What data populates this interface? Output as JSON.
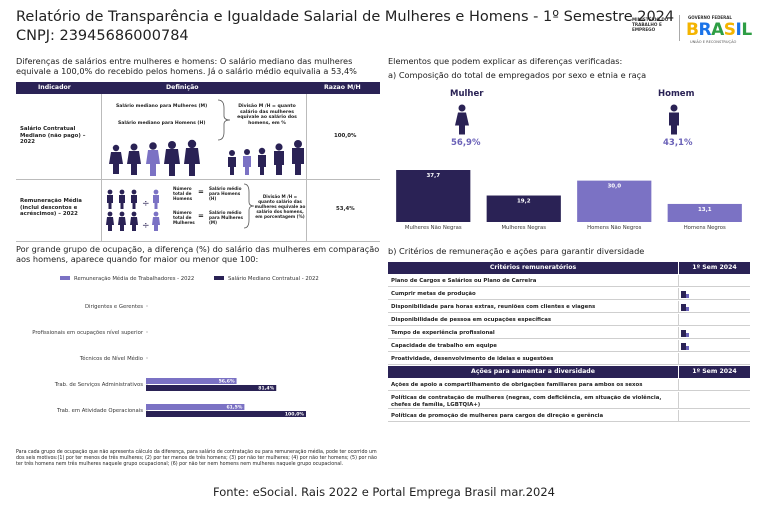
{
  "header": {
    "title": "Relatório de Transparência e Igualdade Salarial de Mulheres e Homens - 1º Semestre 2024",
    "cnpj": "CNPJ: 23945686000784",
    "gov_mini": "MINISTÉRIO DO TRABALHO E EMPREGO",
    "gov_federal": "GOVERNO FEDERAL",
    "gov_brasil": "BRASIL",
    "gov_uniao": "UNIÃO E RECONSTRUÇÃO"
  },
  "intro": "Diferenças de salários entre mulheres e homens: O salário mediano das mulheres equivale a 100,0% do recebido pelos homens. Já o salário médio equivalia a 53,4%",
  "indicator_table": {
    "headers": [
      "Indicador",
      "Definição",
      "Razao M/H"
    ],
    "row1": {
      "indicator": "Salário Contratual Mediano (não pago) – 2022",
      "label_m": "Salário mediano para Mulheres (M)",
      "label_h": "Salário mediano para Homens (H)",
      "explain": "Divisão M /H = quanto salário das mulheres equivale ao salário dos homens, em %",
      "ratio": "100,0%"
    },
    "row2": {
      "indicator": "Remuneração Média (inclui descontos e acréscimos) – 2022",
      "num_h": "Número total de Homens",
      "num_m": "Número total de Mulheres",
      "sal_h": "Salário médio para Homens (H)",
      "sal_m": "Salário médio para Mulheres (M)",
      "explain": "Divisão M /H = quanto salário das mulheres equivale ao salário dos homens, em porcentagem (%)",
      "ratio": "53,4%"
    }
  },
  "right_top": {
    "heading": "Elementos que podem explicar as diferenças verificadas:",
    "subheading": "a) Composição do total de empregados por sexo e etnia e raça",
    "mulher_label": "Mulher",
    "homem_label": "Homem",
    "mulher_pct": "56,9%",
    "homem_pct": "43,1%"
  },
  "chart_data": [
    {
      "type": "bar",
      "categories": [
        "Mulheres Não Negras",
        "Mulheres Negras",
        "Homens Não Negros",
        "Homens Negros"
      ],
      "values": [
        37.7,
        19.2,
        30.0,
        13.1
      ],
      "value_labels": [
        "37,7",
        "19,2",
        "30,0",
        "13,1"
      ],
      "colors": [
        "#2a2255",
        "#2a2255",
        "#7b72c4",
        "#7b72c4"
      ]
    },
    {
      "type": "bar",
      "orientation": "horizontal",
      "categories": [
        "Dirigentes e Gerentes",
        "Profissionais em ocupações nível superior",
        "Técnicos de Nível Médio",
        "Trab. de Serviços Administrativos",
        "Trab. em Atividade Operacionais"
      ],
      "series": [
        {
          "name": "Remuneração Média de Trabalhadores - 2022",
          "values": [
            null,
            null,
            null,
            56.6,
            61.5
          ],
          "labels": [
            "",
            "",
            "",
            "56,6%",
            "61,5%"
          ],
          "color": "#7b72c4"
        },
        {
          "name": "Salário Mediano Contratual - 2022",
          "values": [
            null,
            null,
            null,
            81.4,
            100.0
          ],
          "labels": [
            "",
            "",
            "",
            "81,4%",
            "100,0%"
          ],
          "color": "#2a2255"
        }
      ],
      "xlim": [
        0,
        100
      ]
    }
  ],
  "section2": {
    "text": "Por grande grupo de ocupação, a diferença (%) do salário das mulheres em comparação aos homens, aparece quando for maior ou menor que 100:",
    "note": "Para cada grupo de ocupação que não apresenta cálculo da diferença, para salário de contratação ou para remuneração média, pode ter ocorrido um dos seis motivos:(1) por ter menos de três mulheres; (2) por ter menos de três homens; (3) por não ter mulheres; (4) por não ter homens; (5) por não ter três homens nem três mulheres naquele grupo ocupacional; (6) por não ter nem homens nem mulheres naquele grupo ocupacional."
  },
  "criteria": {
    "heading": "b) Critérios de remuneração e ações para garantir diversidade",
    "header1": "Critérios remuneratórios",
    "header2": "1º Sem 2024",
    "rows": [
      {
        "text": "Plano de Cargos e Salários ou Plano de Carreira",
        "checked": false
      },
      {
        "text": "Cumprir metas de produção",
        "checked": true
      },
      {
        "text": "Disponibilidade para horas extras, reuniões com clientes e viagens",
        "checked": true
      },
      {
        "text": "Disponibilidade de pessoa em ocupações específicas",
        "checked": false
      },
      {
        "text": "Tempo de experiência profissional",
        "checked": true
      },
      {
        "text": "Capacidade de trabalho em equipe",
        "checked": true
      },
      {
        "text": "Proatividade, desenvolvimento de ideias e sugestões",
        "checked": false
      }
    ],
    "header3": "Ações para aumentar a diversidade",
    "header4": "1º Sem 2024",
    "rows2": [
      {
        "text": "Ações de apoio a compartilhamento de obrigações familiares para ambos os sexos",
        "checked": false
      },
      {
        "text": "Políticas de contratação de mulheres (negras, com deficiência, em situação de violência, chefes de família, LGBTQIA+)",
        "checked": false
      },
      {
        "text": "Políticas de promoção de mulheres para cargos de direção e gerência",
        "checked": false
      }
    ]
  },
  "footer": "Fonte: eSocial. Rais 2022 e Portal Emprega Brasil mar.2024"
}
